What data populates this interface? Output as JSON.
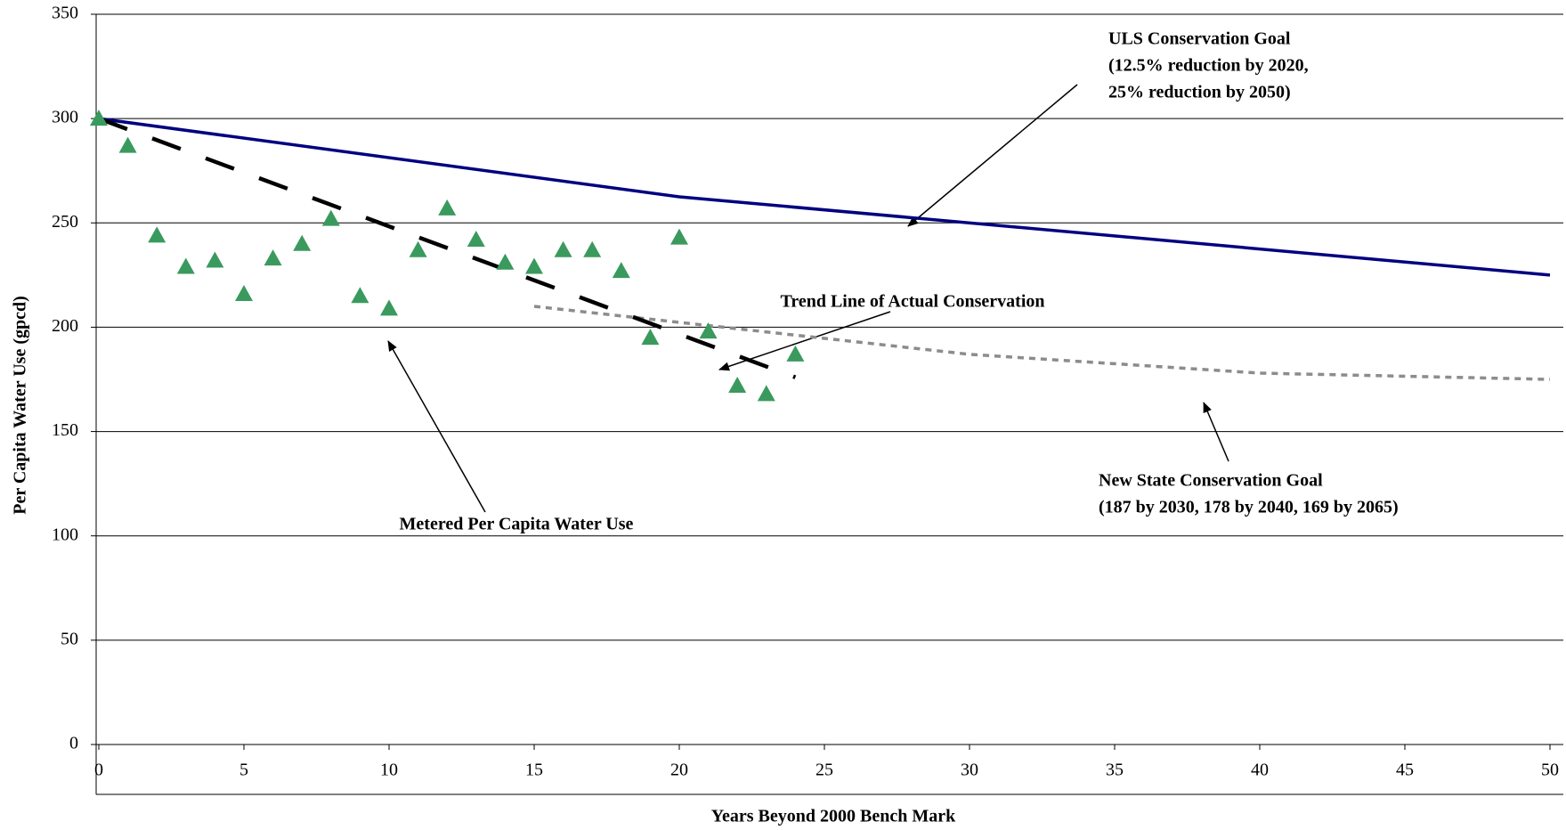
{
  "chart_data": {
    "type": "scatter",
    "xlabel": "Years Beyond 2000 Bench Mark",
    "ylabel": "Per Capita Water Use (gpcd)",
    "xlim": [
      0,
      50
    ],
    "xticks": [
      0,
      5,
      10,
      15,
      20,
      25,
      30,
      35,
      40,
      45,
      50
    ],
    "ylim": [
      0,
      350
    ],
    "yticks": [
      0,
      50,
      100,
      150,
      200,
      250,
      300,
      350
    ],
    "grid": true,
    "series": [
      {
        "kind": "markers",
        "color": "#3a9a5e",
        "x": [
          0,
          1,
          2,
          3,
          4,
          5,
          6,
          7,
          8,
          9,
          10,
          11,
          12,
          13,
          14,
          15,
          16,
          17,
          18,
          19,
          20,
          21,
          22,
          23,
          24
        ],
        "values": [
          300,
          287,
          244,
          229,
          232,
          216,
          233,
          240,
          252,
          215,
          209,
          237,
          257,
          242,
          231,
          229,
          237,
          237,
          227,
          195,
          243,
          198,
          172,
          168,
          187
        ]
      },
      {
        "kind": "solid",
        "color": "#000080",
        "x": [
          0,
          20,
          50
        ],
        "values": [
          300,
          262.5,
          225
        ]
      },
      {
        "kind": "dashed",
        "color": "#000000",
        "x": [
          0,
          24
        ],
        "values": [
          300,
          176
        ]
      },
      {
        "kind": "dotted",
        "color": "#8c8c8c",
        "x": [
          15,
          30,
          40,
          50
        ],
        "values": [
          210,
          187,
          178,
          175
        ]
      }
    ],
    "annotations": [
      {
        "lines": [
          "ULS Conservation Goal",
          "(12.5% reduction by 2020,",
          "25% reduction by 2050)"
        ]
      },
      {
        "lines": [
          "Trend Line of Actual Conservation"
        ]
      },
      {
        "lines": [
          "Metered Per Capita Water Use"
        ]
      },
      {
        "lines": [
          "New State Conservation Goal",
          "(187 by 2030, 178 by 2040, 169 by 2065)"
        ]
      }
    ]
  }
}
